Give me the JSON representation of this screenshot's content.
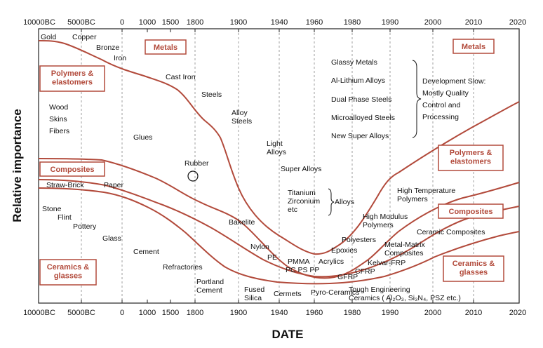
{
  "axes": {
    "y_title": "Relative importance",
    "x_title": "DATE",
    "ticks": [
      "10000BC",
      "5000BC",
      "0",
      "1000",
      "1500",
      "1800",
      "1900",
      "1940",
      "1960",
      "1980",
      "1990",
      "2000",
      "2010",
      "2020"
    ]
  },
  "category_boxes": {
    "metals_left": "Metals",
    "polymers_left": "Polymers & elastomers",
    "composites_left": "Composites",
    "ceramics_left": "Ceramics & glasses",
    "metals_right": "Metals",
    "polymers_right": "Polymers & elastomers",
    "composites_right": "Composites",
    "ceramics_right": "Ceramics & glasses"
  },
  "labels": {
    "gold": "Gold",
    "copper": "Copper",
    "bronze": "Bronze",
    "iron": "Iron",
    "cast_iron": "Cast Iron",
    "steels": "Steels",
    "alloy_steels": "Alloy Steels",
    "light_alloys": "Light Alloys",
    "super_alloys": "Super Alloys",
    "titanium": "Titanium",
    "zirconium": "Zirconium",
    "etc": "etc",
    "alloys": "Alloys",
    "glassy_metals": "Glassy Metals",
    "al_lithium": "Al-Lithium Alloys",
    "dual_phase": "Dual Phase Steels",
    "microalloyed": "Microalloyed Steels",
    "new_super": "New Super Alloys",
    "dev_slow_1": "Development Slow:",
    "dev_slow_2": "Mostly Quality",
    "dev_slow_3": "Control and",
    "dev_slow_4": "Processing",
    "wood": "Wood",
    "skins": "Skins",
    "fibers": "Fibers",
    "glues": "Glues",
    "rubber": "Rubber",
    "straw_brick": "Straw-Brick",
    "paper": "Paper",
    "stone": "Stone",
    "flint": "Flint",
    "pottery": "Pottery",
    "glass": "Glass",
    "cement": "Cement",
    "refractories": "Refractories",
    "portland_cement": "Portland Cement",
    "bakelite": "Bakelite",
    "nylon": "Nylon",
    "pe": "PE",
    "pmma": "PMMA",
    "pc_ps_pp": "PC  PS  PP",
    "acrylics": "Acrylics",
    "polyesters": "Polyesters",
    "epoxies": "Epoxies",
    "gfrp": "GFRP",
    "cfrp": "CFRP",
    "kelvar_frp": "Kelvar-FRP",
    "fused_silica": "Fused Silica",
    "cermets": "Cermets",
    "pyro_ceramics": "Pyro-Ceramics",
    "tough_eng_1": "Tough Engineering",
    "tough_eng_2": "Ceramics ( Al₂O₃, Si₃N₄, PSZ etc.)",
    "high_temp_polymers": "High Temperature Polymers",
    "high_modulus_polymers": "High Modulus Polymers",
    "ceramic_composites": "Ceramic Composites",
    "metal_matrix": "Metal-Matrix Composites"
  },
  "colors": {
    "curve": "#b24a3b",
    "box_border": "#b24a3b",
    "axis": "#222222",
    "dashed": "#888888"
  }
}
